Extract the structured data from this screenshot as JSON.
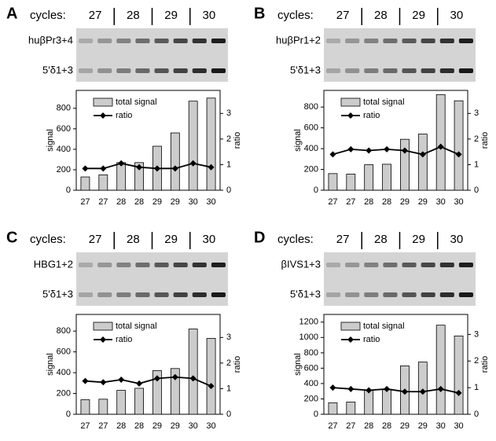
{
  "chart_data": [
    {
      "type": "bar",
      "panel": "A",
      "cycles_label": "cycles:",
      "cycles": [
        "27",
        "28",
        "29",
        "30"
      ],
      "gel_labels": [
        "huβPr3+4",
        "5'δ1+3"
      ],
      "categories": [
        "27",
        "27",
        "28",
        "28",
        "29",
        "29",
        "30",
        "30"
      ],
      "series": [
        {
          "name": "total signal",
          "type": "bar",
          "color": "#cccccc",
          "values": [
            130,
            150,
            270,
            270,
            430,
            560,
            870,
            900
          ]
        },
        {
          "name": "ratio",
          "type": "line",
          "color": "#000000",
          "axis": "y2",
          "values": [
            0.85,
            0.85,
            1.05,
            0.9,
            0.85,
            0.85,
            1.05,
            0.9
          ]
        }
      ],
      "ylabel": "signal",
      "y2label": "ratio",
      "ylim": [
        0,
        975
      ],
      "yticks": [
        0,
        200,
        400,
        600,
        800
      ],
      "y2lim": [
        0,
        3.9
      ],
      "y2ticks": [
        0,
        1,
        2,
        3
      ]
    },
    {
      "type": "bar",
      "panel": "B",
      "cycles_label": "cycles:",
      "cycles": [
        "27",
        "28",
        "29",
        "30"
      ],
      "gel_labels": [
        "huβPr1+2",
        "5'δ1+3"
      ],
      "categories": [
        "27",
        "27",
        "28",
        "28",
        "29",
        "29",
        "30",
        "30"
      ],
      "series": [
        {
          "name": "total signal",
          "type": "bar",
          "color": "#cccccc",
          "values": [
            160,
            155,
            245,
            250,
            490,
            540,
            920,
            860
          ]
        },
        {
          "name": "ratio",
          "type": "line",
          "color": "#000000",
          "axis": "y2",
          "values": [
            1.4,
            1.6,
            1.55,
            1.6,
            1.55,
            1.4,
            1.7,
            1.4
          ]
        }
      ],
      "ylabel": "signal",
      "y2label": "ratio",
      "ylim": [
        0,
        960
      ],
      "yticks": [
        0,
        200,
        400,
        600,
        800
      ],
      "y2lim": [
        0,
        3.9
      ],
      "y2ticks": [
        0,
        1,
        2,
        3
      ]
    },
    {
      "type": "bar",
      "panel": "C",
      "cycles_label": "cycles:",
      "cycles": [
        "27",
        "28",
        "29",
        "30"
      ],
      "gel_labels": [
        "HBG1+2",
        "5'δ1+3"
      ],
      "categories": [
        "27",
        "27",
        "28",
        "28",
        "29",
        "29",
        "30",
        "30"
      ],
      "series": [
        {
          "name": "total signal",
          "type": "bar",
          "color": "#cccccc",
          "values": [
            140,
            145,
            230,
            250,
            420,
            440,
            820,
            730
          ]
        },
        {
          "name": "ratio",
          "type": "line",
          "color": "#000000",
          "axis": "y2",
          "values": [
            1.3,
            1.25,
            1.35,
            1.2,
            1.4,
            1.45,
            1.4,
            1.1
          ]
        }
      ],
      "ylabel": "signal",
      "y2label": "ratio",
      "ylim": [
        0,
        960
      ],
      "yticks": [
        0,
        200,
        400,
        600,
        800
      ],
      "y2lim": [
        0,
        3.9
      ],
      "y2ticks": [
        0,
        1,
        2,
        3
      ]
    },
    {
      "type": "bar",
      "panel": "D",
      "cycles_label": "cycles:",
      "cycles": [
        "27",
        "28",
        "29",
        "30"
      ],
      "gel_labels": [
        "βIVS1+3",
        "5'δ1+3"
      ],
      "categories": [
        "27",
        "27",
        "28",
        "28",
        "29",
        "29",
        "30",
        "30"
      ],
      "series": [
        {
          "name": "total signal",
          "type": "bar",
          "color": "#cccccc",
          "values": [
            150,
            160,
            310,
            320,
            630,
            680,
            1160,
            1020
          ]
        },
        {
          "name": "ratio",
          "type": "line",
          "color": "#000000",
          "axis": "y2",
          "values": [
            1.0,
            0.95,
            0.9,
            0.95,
            0.85,
            0.85,
            0.95,
            0.8
          ]
        }
      ],
      "ylabel": "signal",
      "y2label": "ratio",
      "ylim": [
        0,
        1300
      ],
      "yticks": [
        0,
        200,
        400,
        600,
        800,
        1000,
        1200
      ],
      "y2lim": [
        0,
        3.75
      ],
      "y2ticks": [
        0,
        1,
        2,
        3
      ]
    }
  ]
}
